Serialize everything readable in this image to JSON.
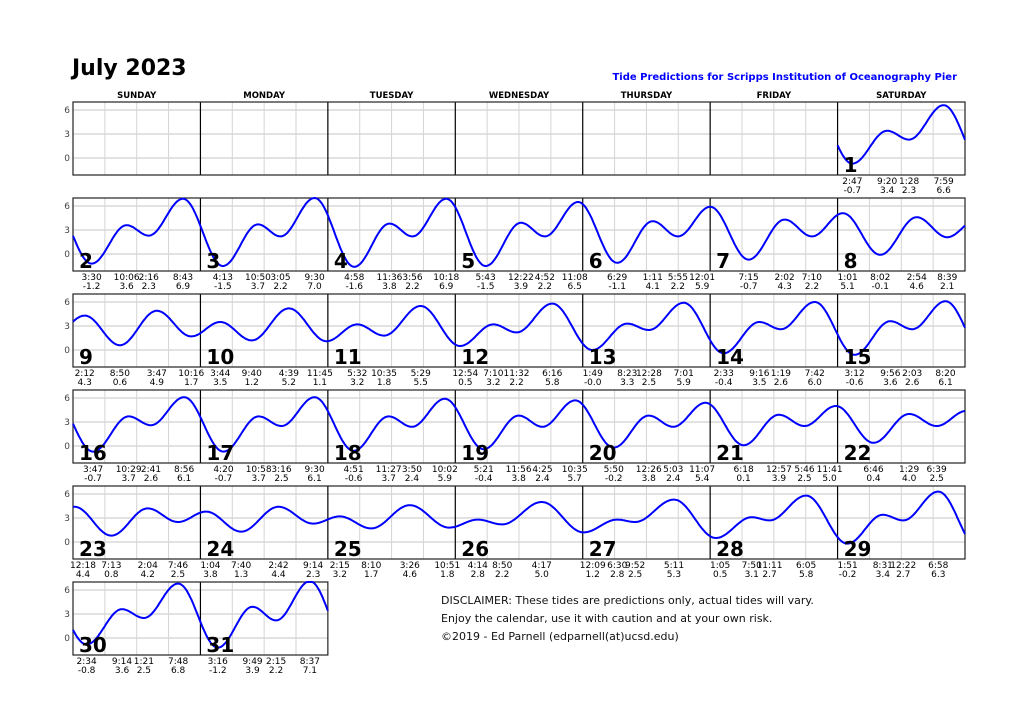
{
  "title": "July 2023",
  "subtitle": "Tide Predictions for Scripps Institution of Oceanography Pier",
  "weekdays": [
    "SUNDAY",
    "MONDAY",
    "TUESDAY",
    "WEDNESDAY",
    "THURSDAY",
    "FRIDAY",
    "SATURDAY"
  ],
  "y_ticks": [
    "6",
    "3",
    "0"
  ],
  "colors": {
    "curve": "#0000ff",
    "subtitle": "#0000ff",
    "grid": "#d8d8d8",
    "frame": "#000000"
  },
  "days": [
    {
      "day": "1",
      "tides": [
        {
          "time": "2:47",
          "height": "-0.7"
        },
        {
          "time": "9:20",
          "height": "3.4"
        },
        {
          "time": "1:28",
          "height": "2.3"
        },
        {
          "time": "7:59",
          "height": "6.6"
        }
      ]
    },
    {
      "day": "2",
      "tides": [
        {
          "time": "3:30",
          "height": "-1.2"
        },
        {
          "time": "10:06",
          "height": "3.6"
        },
        {
          "time": "2:16",
          "height": "2.3"
        },
        {
          "time": "8:43",
          "height": "6.9"
        }
      ]
    },
    {
      "day": "3",
      "tides": [
        {
          "time": "4:13",
          "height": "-1.5"
        },
        {
          "time": "10:50",
          "height": "3.7"
        },
        {
          "time": "3:05",
          "height": "2.2"
        },
        {
          "time": "9:30",
          "height": "7.0"
        }
      ]
    },
    {
      "day": "4",
      "tides": [
        {
          "time": "4:58",
          "height": "-1.6"
        },
        {
          "time": "11:36",
          "height": "3.8"
        },
        {
          "time": "3:56",
          "height": "2.2"
        },
        {
          "time": "10:18",
          "height": "6.9"
        }
      ]
    },
    {
      "day": "5",
      "tides": [
        {
          "time": "5:43",
          "height": "-1.5"
        },
        {
          "time": "12:22",
          "height": "3.9"
        },
        {
          "time": "4:52",
          "height": "2.2"
        },
        {
          "time": "11:08",
          "height": "6.5"
        }
      ]
    },
    {
      "day": "6",
      "tides": [
        {
          "time": "6:29",
          "height": "-1.1"
        },
        {
          "time": "1:11",
          "height": "4.1"
        },
        {
          "time": "5:55",
          "height": "2.2"
        },
        {
          "time": "12:01",
          "height": "5.9"
        }
      ]
    },
    {
      "day": "7",
      "tides": [
        {
          "time": "7:15",
          "height": "-0.7"
        },
        {
          "time": "2:02",
          "height": "4.3"
        },
        {
          "time": "7:10",
          "height": "2.2"
        }
      ]
    },
    {
      "day": "8",
      "tides": [
        {
          "time": "1:01",
          "height": "5.1"
        },
        {
          "time": "8:02",
          "height": "-0.1"
        },
        {
          "time": "2:54",
          "height": "4.6"
        },
        {
          "time": "8:39",
          "height": "2.1"
        }
      ]
    },
    {
      "day": "9",
      "tides": [
        {
          "time": "2:12",
          "height": "4.3"
        },
        {
          "time": "8:50",
          "height": "0.6"
        },
        {
          "time": "3:47",
          "height": "4.9"
        },
        {
          "time": "10:16",
          "height": "1.7"
        }
      ]
    },
    {
      "day": "10",
      "tides": [
        {
          "time": "3:44",
          "height": "3.5"
        },
        {
          "time": "9:40",
          "height": "1.2"
        },
        {
          "time": "4:39",
          "height": "5.2"
        },
        {
          "time": "11:45",
          "height": "1.1"
        }
      ]
    },
    {
      "day": "11",
      "tides": [
        {
          "time": "5:32",
          "height": "3.2"
        },
        {
          "time": "10:35",
          "height": "1.8"
        },
        {
          "time": "5:29",
          "height": "5.5"
        }
      ]
    },
    {
      "day": "12",
      "tides": [
        {
          "time": "12:54",
          "height": "0.5"
        },
        {
          "time": "7:10",
          "height": "3.2"
        },
        {
          "time": "11:32",
          "height": "2.2"
        },
        {
          "time": "6:16",
          "height": "5.8"
        }
      ]
    },
    {
      "day": "13",
      "tides": [
        {
          "time": "1:49",
          "height": "-0.0"
        },
        {
          "time": "8:23",
          "height": "3.3"
        },
        {
          "time": "12:28",
          "height": "2.5"
        },
        {
          "time": "7:01",
          "height": "5.9"
        }
      ]
    },
    {
      "day": "14",
      "tides": [
        {
          "time": "2:33",
          "height": "-0.4"
        },
        {
          "time": "9:16",
          "height": "3.5"
        },
        {
          "time": "1:19",
          "height": "2.6"
        },
        {
          "time": "7:42",
          "height": "6.0"
        }
      ]
    },
    {
      "day": "15",
      "tides": [
        {
          "time": "3:12",
          "height": "-0.6"
        },
        {
          "time": "9:56",
          "height": "3.6"
        },
        {
          "time": "2:03",
          "height": "2.6"
        },
        {
          "time": "8:20",
          "height": "6.1"
        }
      ]
    },
    {
      "day": "16",
      "tides": [
        {
          "time": "3:47",
          "height": "-0.7"
        },
        {
          "time": "10:29",
          "height": "3.7"
        },
        {
          "time": "2:41",
          "height": "2.6"
        },
        {
          "time": "8:56",
          "height": "6.1"
        }
      ]
    },
    {
      "day": "17",
      "tides": [
        {
          "time": "4:20",
          "height": "-0.7"
        },
        {
          "time": "10:58",
          "height": "3.7"
        },
        {
          "time": "3:16",
          "height": "2.5"
        },
        {
          "time": "9:30",
          "height": "6.1"
        }
      ]
    },
    {
      "day": "18",
      "tides": [
        {
          "time": "4:51",
          "height": "-0.6"
        },
        {
          "time": "11:27",
          "height": "3.7"
        },
        {
          "time": "3:50",
          "height": "2.4"
        },
        {
          "time": "10:02",
          "height": "5.9"
        }
      ]
    },
    {
      "day": "19",
      "tides": [
        {
          "time": "5:21",
          "height": "-0.4"
        },
        {
          "time": "11:56",
          "height": "3.8"
        },
        {
          "time": "4:25",
          "height": "2.4"
        },
        {
          "time": "10:35",
          "height": "5.7"
        }
      ]
    },
    {
      "day": "20",
      "tides": [
        {
          "time": "5:50",
          "height": "-0.2"
        },
        {
          "time": "12:26",
          "height": "3.8"
        },
        {
          "time": "5:03",
          "height": "2.4"
        },
        {
          "time": "11:07",
          "height": "5.4"
        }
      ]
    },
    {
      "day": "21",
      "tides": [
        {
          "time": "6:18",
          "height": "0.1"
        },
        {
          "time": "12:57",
          "height": "3.9"
        },
        {
          "time": "5:46",
          "height": "2.5"
        },
        {
          "time": "11:41",
          "height": "5.0"
        }
      ]
    },
    {
      "day": "22",
      "tides": [
        {
          "time": "6:46",
          "height": "0.4"
        },
        {
          "time": "1:29",
          "height": "4.0"
        },
        {
          "time": "6:39",
          "height": "2.5"
        }
      ]
    },
    {
      "day": "23",
      "tides": [
        {
          "time": "12:18",
          "height": "4.4"
        },
        {
          "time": "7:13",
          "height": "0.8"
        },
        {
          "time": "2:04",
          "height": "4.2"
        },
        {
          "time": "7:46",
          "height": "2.5"
        }
      ]
    },
    {
      "day": "24",
      "tides": [
        {
          "time": "1:04",
          "height": "3.8"
        },
        {
          "time": "7:40",
          "height": "1.3"
        },
        {
          "time": "2:42",
          "height": "4.4"
        },
        {
          "time": "9:14",
          "height": "2.3"
        }
      ]
    },
    {
      "day": "25",
      "tides": [
        {
          "time": "2:15",
          "height": "3.2"
        },
        {
          "time": "8:10",
          "height": "1.7"
        },
        {
          "time": "3:26",
          "height": "4.6"
        },
        {
          "time": "10:51",
          "height": "1.8"
        }
      ]
    },
    {
      "day": "26",
      "tides": [
        {
          "time": "4:14",
          "height": "2.8"
        },
        {
          "time": "8:50",
          "height": "2.2"
        },
        {
          "time": "4:17",
          "height": "5.0"
        }
      ]
    },
    {
      "day": "27",
      "tides": [
        {
          "time": "12:09",
          "height": "1.2"
        },
        {
          "time": "6:30",
          "height": "2.8"
        },
        {
          "time": "9:52",
          "height": "2.5"
        },
        {
          "time": "5:11",
          "height": "5.3"
        }
      ]
    },
    {
      "day": "28",
      "tides": [
        {
          "time": "1:05",
          "height": "0.5"
        },
        {
          "time": "7:50",
          "height": "3.1"
        },
        {
          "time": "11:11",
          "height": "2.7"
        },
        {
          "time": "6:05",
          "height": "5.8"
        }
      ]
    },
    {
      "day": "29",
      "tides": [
        {
          "time": "1:51",
          "height": "-0.2"
        },
        {
          "time": "8:31",
          "height": "3.4"
        },
        {
          "time": "12:22",
          "height": "2.7"
        },
        {
          "time": "6:58",
          "height": "6.3"
        }
      ]
    },
    {
      "day": "30",
      "tides": [
        {
          "time": "2:34",
          "height": "-0.8"
        },
        {
          "time": "9:14",
          "height": "3.6"
        },
        {
          "time": "1:21",
          "height": "2.5"
        },
        {
          "time": "7:48",
          "height": "6.8"
        }
      ]
    },
    {
      "day": "31",
      "tides": [
        {
          "time": "3:16",
          "height": "-1.2"
        },
        {
          "time": "9:49",
          "height": "3.9"
        },
        {
          "time": "2:15",
          "height": "2.2"
        },
        {
          "time": "8:37",
          "height": "7.1"
        }
      ]
    }
  ],
  "disclaimer": [
    "DISCLAIMER: These tides are predictions only, actual tides will vary.",
    "Enjoy the calendar, use it with caution and at your own risk.",
    "©2019 - Ed Parnell (edparnell(at)ucsd.edu)"
  ]
}
